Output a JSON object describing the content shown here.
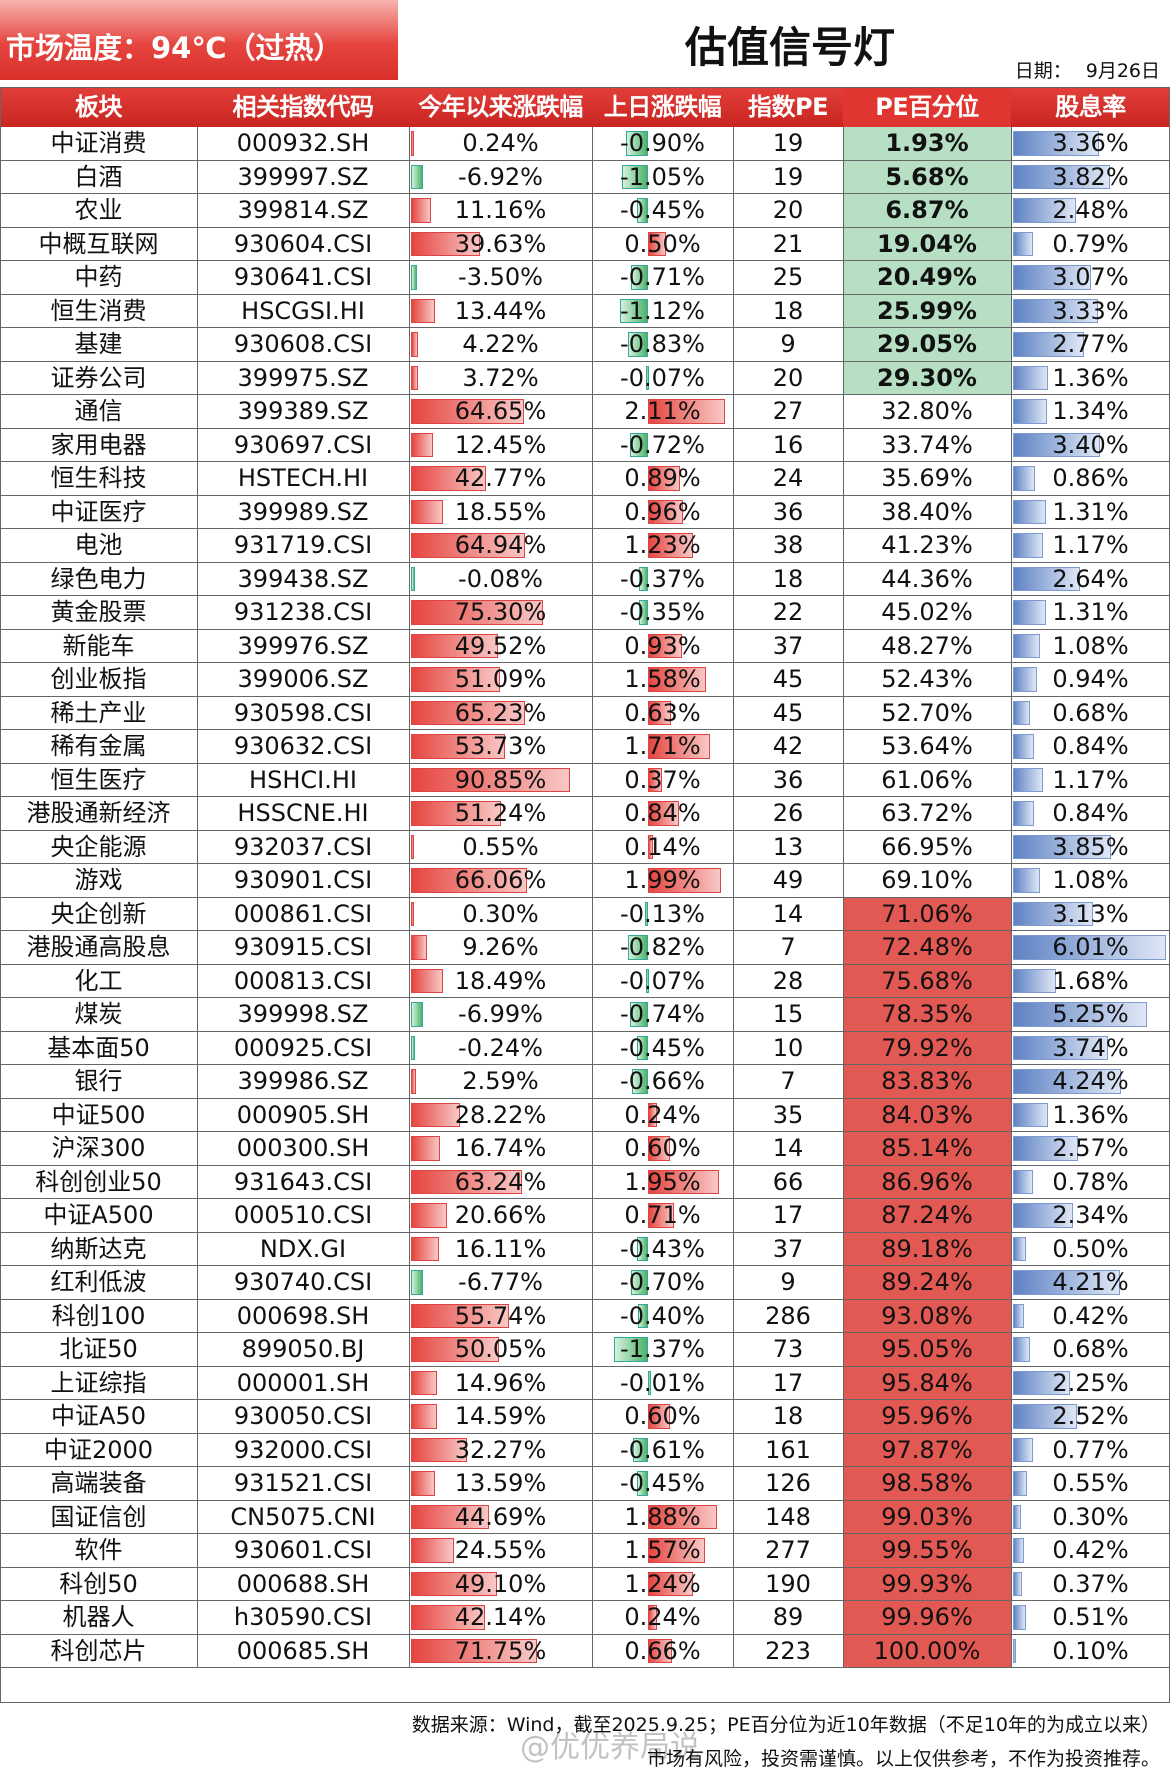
{
  "header": {
    "temperature": "市场温度：94℃（过热）",
    "title": "估值信号灯",
    "date_label": "日期：",
    "date_value": "9月26日"
  },
  "columns": [
    "板块",
    "相关指数代码",
    "今年以来涨跌幅",
    "上日涨跌幅",
    "指数PE",
    "PE百分位",
    "股息率"
  ],
  "colors": {
    "header_red": "#d92f2b",
    "low_pe_green": "#b7dfc4",
    "high_pe_red": "#e25853",
    "div_blue": "#5e82c4"
  },
  "rows": [
    [
      "中证消费",
      "000932.SH",
      "0.24%",
      "-0.90%",
      "19",
      "1.93%",
      "3.36%"
    ],
    [
      "白酒",
      "399997.SZ",
      "-6.92%",
      "-1.05%",
      "19",
      "5.68%",
      "3.82%"
    ],
    [
      "农业",
      "399814.SZ",
      "11.16%",
      "-0.45%",
      "20",
      "6.87%",
      "2.48%"
    ],
    [
      "中概互联网",
      "930604.CSI",
      "39.63%",
      "0.50%",
      "21",
      "19.04%",
      "0.79%"
    ],
    [
      "中药",
      "930641.CSI",
      "-3.50%",
      "-0.71%",
      "25",
      "20.49%",
      "3.07%"
    ],
    [
      "恒生消费",
      "HSCGSI.HI",
      "13.44%",
      "-1.12%",
      "18",
      "25.99%",
      "3.33%"
    ],
    [
      "基建",
      "930608.CSI",
      "4.22%",
      "-0.83%",
      "9",
      "29.05%",
      "2.77%"
    ],
    [
      "证券公司",
      "399975.SZ",
      "3.72%",
      "-0.07%",
      "20",
      "29.30%",
      "1.36%"
    ],
    [
      "通信",
      "399389.SZ",
      "64.65%",
      "2.11%",
      "27",
      "32.80%",
      "1.34%"
    ],
    [
      "家用电器",
      "930697.CSI",
      "12.45%",
      "-0.72%",
      "16",
      "33.74%",
      "3.40%"
    ],
    [
      "恒生科技",
      "HSTECH.HI",
      "42.77%",
      "0.89%",
      "24",
      "35.69%",
      "0.86%"
    ],
    [
      "中证医疗",
      "399989.SZ",
      "18.55%",
      "0.96%",
      "36",
      "38.40%",
      "1.31%"
    ],
    [
      "电池",
      "931719.CSI",
      "64.94%",
      "1.23%",
      "38",
      "41.23%",
      "1.17%"
    ],
    [
      "绿色电力",
      "399438.SZ",
      "-0.08%",
      "-0.37%",
      "18",
      "44.36%",
      "2.64%"
    ],
    [
      "黄金股票",
      "931238.CSI",
      "75.30%",
      "-0.35%",
      "22",
      "45.02%",
      "1.31%"
    ],
    [
      "新能车",
      "399976.SZ",
      "49.52%",
      "0.93%",
      "37",
      "48.27%",
      "1.08%"
    ],
    [
      "创业板指",
      "399006.SZ",
      "51.09%",
      "1.58%",
      "45",
      "52.43%",
      "0.94%"
    ],
    [
      "稀土产业",
      "930598.CSI",
      "65.23%",
      "0.63%",
      "45",
      "52.70%",
      "0.68%"
    ],
    [
      "稀有金属",
      "930632.CSI",
      "53.73%",
      "1.71%",
      "42",
      "53.64%",
      "0.84%"
    ],
    [
      "恒生医疗",
      "HSHCI.HI",
      "90.85%",
      "0.37%",
      "36",
      "61.06%",
      "1.17%"
    ],
    [
      "港股通新经济",
      "HSSCNE.HI",
      "51.24%",
      "0.84%",
      "26",
      "63.72%",
      "0.84%"
    ],
    [
      "央企能源",
      "932037.CSI",
      "0.55%",
      "0.14%",
      "13",
      "66.95%",
      "3.85%"
    ],
    [
      "游戏",
      "930901.CSI",
      "66.06%",
      "1.99%",
      "49",
      "69.10%",
      "1.08%"
    ],
    [
      "央企创新",
      "000861.CSI",
      "0.30%",
      "-0.13%",
      "14",
      "71.06%",
      "3.13%"
    ],
    [
      "港股通高股息",
      "930915.CSI",
      "9.26%",
      "-0.82%",
      "7",
      "72.48%",
      "6.01%"
    ],
    [
      "化工",
      "000813.CSI",
      "18.49%",
      "-0.07%",
      "28",
      "75.68%",
      "1.68%"
    ],
    [
      "煤炭",
      "399998.SZ",
      "-6.99%",
      "-0.74%",
      "15",
      "78.35%",
      "5.25%"
    ],
    [
      "基本面50",
      "000925.CSI",
      "-0.24%",
      "-0.45%",
      "10",
      "79.92%",
      "3.74%"
    ],
    [
      "银行",
      "399986.SZ",
      "2.59%",
      "-0.66%",
      "7",
      "83.83%",
      "4.24%"
    ],
    [
      "中证500",
      "000905.SH",
      "28.22%",
      "0.24%",
      "35",
      "84.03%",
      "1.36%"
    ],
    [
      "沪深300",
      "000300.SH",
      "16.74%",
      "0.60%",
      "14",
      "85.14%",
      "2.57%"
    ],
    [
      "科创创业50",
      "931643.CSI",
      "63.24%",
      "1.95%",
      "66",
      "86.96%",
      "0.78%"
    ],
    [
      "中证A500",
      "000510.CSI",
      "20.66%",
      "0.71%",
      "17",
      "87.24%",
      "2.34%"
    ],
    [
      "纳斯达克",
      "NDX.GI",
      "16.11%",
      "-0.43%",
      "37",
      "89.18%",
      "0.50%"
    ],
    [
      "红利低波",
      "930740.CSI",
      "-6.77%",
      "-0.70%",
      "9",
      "89.24%",
      "4.21%"
    ],
    [
      "科创100",
      "000698.SH",
      "55.74%",
      "-0.40%",
      "286",
      "93.08%",
      "0.42%"
    ],
    [
      "北证50",
      "899050.BJ",
      "50.05%",
      "-1.37%",
      "73",
      "95.05%",
      "0.68%"
    ],
    [
      "上证综指",
      "000001.SH",
      "14.96%",
      "-0.01%",
      "17",
      "95.84%",
      "2.25%"
    ],
    [
      "中证A50",
      "930050.CSI",
      "14.59%",
      "0.60%",
      "18",
      "95.96%",
      "2.52%"
    ],
    [
      "中证2000",
      "932000.CSI",
      "32.27%",
      "-0.61%",
      "161",
      "97.87%",
      "0.77%"
    ],
    [
      "高端装备",
      "931521.CSI",
      "13.59%",
      "-0.45%",
      "126",
      "98.58%",
      "0.55%"
    ],
    [
      "国证信创",
      "CN5075.CNI",
      "44.69%",
      "1.88%",
      "148",
      "99.03%",
      "0.30%"
    ],
    [
      "软件",
      "930601.CSI",
      "24.55%",
      "1.57%",
      "277",
      "99.55%",
      "0.42%"
    ],
    [
      "科创50",
      "000688.SH",
      "49.10%",
      "1.24%",
      "190",
      "99.93%",
      "0.37%"
    ],
    [
      "机器人",
      "h30590.CSI",
      "42.14%",
      "0.24%",
      "89",
      "99.96%",
      "0.51%"
    ],
    [
      "科创芯片",
      "000685.SH",
      "71.75%",
      "0.66%",
      "223",
      "100.00%",
      "0.10%"
    ]
  ],
  "footer": {
    "source": "数据来源：Wind，截至2025.9.25；PE百分位为近10年数据（不足10年的为成立以来）",
    "disclaimer": "市场有风险，投资需谨慎。以上仅供参考，不作为投资推荐。",
    "watermark": "@优优养局说"
  }
}
